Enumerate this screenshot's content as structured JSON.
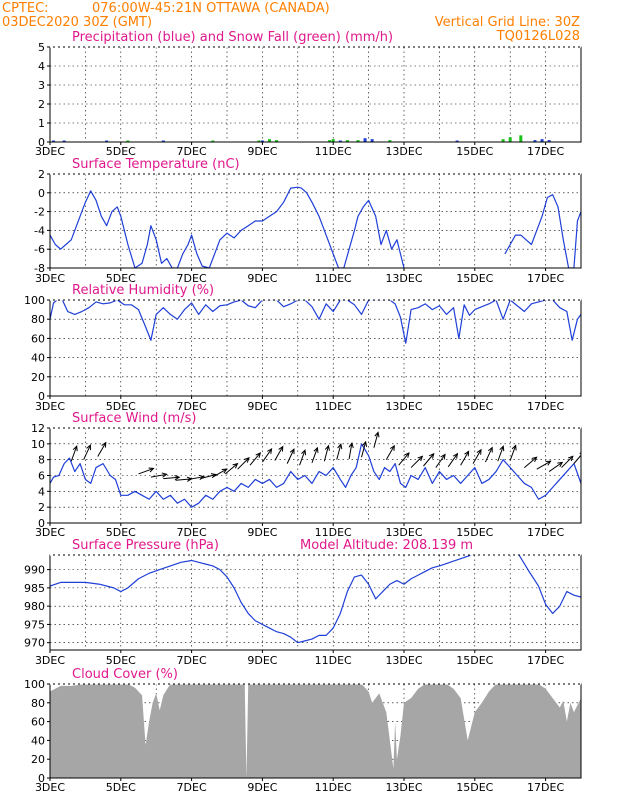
{
  "header": {
    "source": "CPTEC:",
    "location": "076:00W-45:21N  OTTAWA (CANADA)",
    "run": "03DEC2020 30Z (GMT)",
    "grid_note": "Vertical Grid Line: 30Z",
    "model": "TQ0126L028"
  },
  "chart_data": [
    {
      "id": "precip",
      "type": "bar",
      "title": "Precipitation (blue) and Snow Fall (green) (mm/h)",
      "ylim": [
        0,
        5
      ],
      "yticks": [
        0,
        1,
        2,
        3,
        4,
        5
      ],
      "x_tick_labels": [
        "3DEC",
        "5DEC",
        "7DEC",
        "9DEC",
        "11DEC",
        "13DEC",
        "15DEC",
        "17DEC"
      ],
      "series": [
        {
          "color": "#1f3fd8",
          "x": [
            3.1,
            3.4,
            4.6,
            6.2,
            9.0,
            11.2,
            11.9,
            12.1,
            14.5,
            16.7,
            16.9,
            17.1
          ],
          "values": [
            0.05,
            0.05,
            0.05,
            0.05,
            0.05,
            0.05,
            0.2,
            0.15,
            0.05,
            0.1,
            0.15,
            0.1
          ]
        },
        {
          "color": "#19c219",
          "x": [
            5.2,
            7.6,
            8.9,
            9.2,
            9.4,
            10.9,
            11.0,
            11.4,
            11.7,
            12.6,
            15.8,
            16.0,
            16.3
          ],
          "values": [
            0.05,
            0.05,
            0.05,
            0.15,
            0.1,
            0.1,
            0.15,
            0.1,
            0.1,
            0.1,
            0.15,
            0.25,
            0.35
          ]
        }
      ]
    },
    {
      "id": "temp",
      "type": "line",
      "title": "Surface Temperature (nC)",
      "ylim": [
        -8,
        2
      ],
      "yticks": [
        -8,
        -6,
        -4,
        -2,
        0,
        2
      ],
      "x_tick_labels": [
        "3DEC",
        "5DEC",
        "7DEC",
        "9DEC",
        "11DEC",
        "13DEC",
        "15DEC",
        "17DEC"
      ],
      "series": [
        {
          "color": "#1f3fd8",
          "x": [
            3.0,
            3.15,
            3.3,
            3.45,
            3.6,
            3.75,
            3.9,
            4.0,
            4.15,
            4.3,
            4.45,
            4.6,
            4.75,
            4.9,
            5.0,
            5.2,
            5.4,
            5.6,
            5.75,
            5.85,
            6.0,
            6.15,
            6.3,
            6.45,
            6.6,
            6.75,
            6.9,
            7.0,
            7.15,
            7.3,
            7.5,
            7.65,
            7.8,
            8.0,
            8.2,
            8.4,
            8.6,
            8.8,
            9.0,
            9.2,
            9.4,
            9.6,
            9.8,
            10.0,
            10.1,
            10.25,
            10.4,
            10.6,
            10.8,
            11.0,
            11.15,
            11.3,
            11.45,
            11.6,
            11.7,
            11.85,
            12.0,
            12.2,
            12.35,
            12.5,
            12.65,
            12.8,
            12.9,
            13.0
          ],
          "values": [
            -4.5,
            -5.5,
            -6.0,
            -5.5,
            -5.0,
            -3.5,
            -2.0,
            -1.0,
            0.2,
            -0.8,
            -2.5,
            -3.5,
            -2.0,
            -1.5,
            -2.5,
            -5.5,
            -8.0,
            -7.5,
            -5.5,
            -3.5,
            -5.0,
            -7.5,
            -7.0,
            -8.0,
            -8.0,
            -6.5,
            -5.5,
            -4.5,
            -6.5,
            -7.8,
            -8.0,
            -6.5,
            -5.0,
            -4.3,
            -4.8,
            -4.0,
            -3.5,
            -3.0,
            -3.0,
            -2.5,
            -2.0,
            -1.0,
            0.5,
            0.6,
            0.5,
            0.0,
            -1.0,
            -2.5,
            -4.5,
            -6.5,
            -8.0,
            -8.0,
            -6.0,
            -4.0,
            -2.5,
            -1.5,
            -0.8,
            -2.5,
            -5.5,
            -4.0,
            -6.0,
            -5.0,
            -6.5,
            -8.0
          ]
        },
        {
          "color": "#1f3fd8",
          "x": [
            15.85,
            16.0,
            16.15,
            16.3,
            16.45,
            16.6,
            16.75,
            16.9,
            17.05,
            17.2,
            17.35,
            17.5,
            17.65,
            17.8,
            17.9,
            18.0
          ],
          "values": [
            -6.5,
            -5.5,
            -4.5,
            -4.5,
            -5.0,
            -5.5,
            -4.0,
            -2.5,
            -0.5,
            -0.2,
            -1.5,
            -5.0,
            -8.0,
            -8.0,
            -3.0,
            -2.0
          ]
        }
      ]
    },
    {
      "id": "humidity",
      "type": "line",
      "title": "Relative Humidity (%)",
      "ylim": [
        0,
        100
      ],
      "yticks": [
        0,
        20,
        40,
        60,
        80,
        100
      ],
      "x_tick_labels": [
        "3DEC",
        "5DEC",
        "7DEC",
        "9DEC",
        "11DEC",
        "13DEC",
        "15DEC",
        "17DEC"
      ],
      "series": [
        {
          "color": "#1f3fd8",
          "x": [
            3.0,
            3.1,
            3.2,
            3.35,
            3.5,
            3.7,
            3.9,
            4.1,
            4.3,
            4.5,
            4.7,
            4.9,
            5.1,
            5.3,
            5.5,
            5.7,
            5.85,
            6.0,
            6.2,
            6.4,
            6.6,
            6.8,
            7.0,
            7.2,
            7.4,
            7.6,
            7.8,
            8.0,
            8.2,
            8.4,
            8.6,
            8.8,
            9.0,
            9.2,
            9.4,
            9.6,
            9.8,
            10.0,
            10.2,
            10.4,
            10.6,
            10.8,
            11.0,
            11.2,
            11.4,
            11.6,
            11.8,
            12.0,
            12.2,
            12.4,
            12.6,
            12.75,
            12.9,
            13.05,
            13.2,
            13.4,
            13.6,
            13.8,
            14.0,
            14.2,
            14.4,
            14.55,
            14.7,
            14.85,
            15.0,
            15.2,
            15.4,
            15.6,
            15.8,
            16.0,
            16.2,
            16.4,
            16.6,
            16.8,
            17.0,
            17.2,
            17.4,
            17.6,
            17.75,
            17.9,
            18.0
          ],
          "values": [
            80,
            97,
            100,
            100,
            88,
            85,
            88,
            92,
            98,
            96,
            97,
            100,
            95,
            95,
            90,
            72,
            58,
            85,
            92,
            85,
            80,
            90,
            97,
            85,
            95,
            88,
            94,
            95,
            98,
            100,
            94,
            92,
            100,
            100,
            100,
            93,
            96,
            100,
            100,
            93,
            80,
            96,
            88,
            100,
            100,
            95,
            85,
            100,
            100,
            100,
            100,
            96,
            82,
            55,
            90,
            92,
            96,
            90,
            94,
            85,
            92,
            60,
            95,
            84,
            90,
            93,
            96,
            100,
            80,
            100,
            94,
            88,
            96,
            98,
            100,
            100,
            92,
            88,
            58,
            80,
            85
          ]
        }
      ]
    },
    {
      "id": "wind",
      "type": "line",
      "title": "Surface Wind (m/s)",
      "ylim": [
        0,
        12
      ],
      "yticks": [
        0,
        2,
        4,
        6,
        8,
        10,
        12
      ],
      "x_tick_labels": [
        "3DEC",
        "5DEC",
        "7DEC",
        "9DEC",
        "11DEC",
        "13DEC",
        "15DEC",
        "17DEC"
      ],
      "series": [
        {
          "color": "#1f3fd8",
          "x": [
            3.0,
            3.1,
            3.25,
            3.4,
            3.55,
            3.7,
            3.85,
            4.0,
            4.15,
            4.3,
            4.5,
            4.7,
            4.85,
            5.0,
            5.2,
            5.4,
            5.6,
            5.8,
            6.0,
            6.2,
            6.4,
            6.6,
            6.8,
            7.0,
            7.2,
            7.4,
            7.6,
            7.8,
            8.0,
            8.2,
            8.4,
            8.6,
            8.8,
            9.0,
            9.2,
            9.4,
            9.6,
            9.8,
            10.0,
            10.2,
            10.4,
            10.6,
            10.8,
            11.0,
            11.2,
            11.35,
            11.5,
            11.65,
            11.8,
            12.0,
            12.15,
            12.3,
            12.45,
            12.6,
            12.75,
            12.9,
            13.05,
            13.2,
            13.4,
            13.6,
            13.8,
            14.0,
            14.2,
            14.4,
            14.6,
            14.8,
            15.0,
            15.2,
            15.4,
            15.6,
            15.8,
            16.0,
            16.2,
            16.4,
            16.6,
            16.8,
            17.0,
            17.2,
            17.4,
            17.6,
            17.8,
            18.0
          ],
          "values": [
            5.0,
            5.8,
            6.0,
            7.5,
            8.2,
            6.5,
            7.5,
            5.5,
            5.0,
            7.0,
            7.5,
            6.0,
            5.5,
            3.5,
            3.5,
            4.0,
            3.5,
            3.0,
            4.0,
            3.0,
            3.5,
            2.5,
            3.0,
            2.0,
            2.5,
            3.5,
            3.0,
            4.0,
            4.5,
            4.0,
            5.0,
            4.5,
            5.5,
            5.0,
            5.5,
            4.5,
            5.0,
            6.5,
            5.5,
            6.0,
            5.0,
            6.5,
            6.0,
            7.0,
            5.5,
            4.5,
            6.0,
            7.0,
            10.0,
            8.5,
            6.5,
            5.5,
            7.0,
            6.5,
            7.5,
            5.0,
            4.5,
            6.0,
            5.5,
            7.0,
            5.0,
            6.5,
            5.5,
            6.0,
            5.0,
            6.0,
            7.0,
            5.0,
            5.5,
            6.5,
            8.0,
            7.0,
            6.0,
            5.0,
            4.5,
            3.0,
            3.5,
            4.5,
            5.5,
            6.5,
            7.5,
            5.0
          ]
        }
      ],
      "arrows": {
        "x": [
          3.6,
          3.95,
          4.35,
          5.5,
          5.85,
          6.2,
          6.55,
          6.9,
          7.25,
          7.6,
          7.95,
          8.3,
          8.65,
          9.0,
          9.35,
          9.7,
          10.05,
          10.4,
          10.75,
          11.1,
          11.45,
          11.8,
          12.15,
          12.5,
          12.85,
          13.2,
          13.55,
          13.9,
          14.25,
          14.6,
          14.95,
          15.3,
          15.65,
          16.0,
          16.4,
          16.75,
          17.1,
          17.45,
          17.8
        ],
        "values": [
          7.8,
          8.0,
          8.4,
          6.2,
          5.8,
          5.6,
          5.4,
          5.5,
          5.6,
          5.8,
          6.2,
          6.8,
          7.3,
          7.7,
          7.9,
          7.5,
          7.3,
          7.6,
          7.8,
          8.0,
          8.1,
          8.3,
          9.5,
          8.0,
          7.3,
          7.0,
          7.2,
          7.0,
          7.1,
          7.3,
          7.5,
          7.7,
          7.8,
          7.9,
          7.0,
          6.8,
          6.5,
          7.0,
          7.5
        ],
        "direction_deg": [
          20,
          25,
          30,
          70,
          80,
          85,
          85,
          80,
          75,
          60,
          50,
          45,
          40,
          35,
          30,
          25,
          20,
          20,
          15,
          15,
          10,
          15,
          15,
          30,
          40,
          45,
          40,
          35,
          35,
          30,
          30,
          25,
          20,
          20,
          50,
          60,
          55,
          45,
          40
        ]
      }
    },
    {
      "id": "pressure",
      "type": "line",
      "title": "Surface Pressure (hPa)",
      "annotation": "Model Altitude: 208.139 m",
      "ylim": [
        968,
        994
      ],
      "yticks": [
        970,
        975,
        980,
        985,
        990
      ],
      "x_tick_labels": [
        "3DEC",
        "5DEC",
        "7DEC",
        "9DEC",
        "11DEC",
        "13DEC",
        "15DEC",
        "17DEC"
      ],
      "series": [
        {
          "color": "#1f3fd8",
          "x": [
            3.0,
            3.3,
            3.6,
            4.0,
            4.4,
            4.8,
            5.0,
            5.2,
            5.5,
            5.8,
            6.1,
            6.4,
            6.7,
            7.0,
            7.2,
            7.4,
            7.6,
            7.8,
            8.0,
            8.2,
            8.4,
            8.6,
            8.8,
            9.0,
            9.2,
            9.4,
            9.6,
            9.8,
            10.0,
            10.2,
            10.4,
            10.6,
            10.8,
            11.0,
            11.2,
            11.4,
            11.6,
            11.8,
            12.0,
            12.2,
            12.4,
            12.6,
            12.8,
            13.0,
            13.2,
            13.4,
            13.6,
            13.8,
            14.0,
            14.3,
            14.6,
            14.9
          ],
          "values": [
            985.5,
            986.5,
            986.5,
            986.5,
            986.0,
            985.0,
            984.0,
            985.0,
            987.5,
            989.0,
            990.0,
            991.0,
            992.0,
            992.5,
            992.0,
            991.5,
            991.0,
            990.0,
            988.0,
            985.0,
            981.0,
            978.0,
            976.0,
            975.0,
            974.0,
            973.0,
            972.5,
            971.5,
            970.0,
            970.5,
            971.0,
            972.0,
            972.0,
            974.0,
            978.0,
            984.0,
            988.0,
            988.5,
            986.0,
            982.0,
            984.0,
            986.0,
            987.0,
            986.0,
            987.5,
            988.5,
            989.5,
            990.5,
            991.0,
            992.0,
            993.0,
            994.0
          ]
        },
        {
          "color": "#1f3fd8",
          "x": [
            16.25,
            16.5,
            16.8,
            17.0,
            17.2,
            17.4,
            17.6,
            17.8,
            18.0
          ],
          "values": [
            994.0,
            990.0,
            985.5,
            980.5,
            978.0,
            980.0,
            984.0,
            983.0,
            982.5
          ]
        }
      ]
    },
    {
      "id": "cloud",
      "type": "area",
      "title": "Cloud Cover (%)",
      "ylim": [
        0,
        100
      ],
      "yticks": [
        0,
        20,
        40,
        60,
        80,
        100
      ],
      "x_tick_labels": [
        "3DEC",
        "5DEC",
        "7DEC",
        "9DEC",
        "11DEC",
        "13DEC",
        "15DEC",
        "17DEC"
      ],
      "series": [
        {
          "color": "#a6a6a6",
          "x": [
            3.0,
            3.3,
            3.6,
            4.0,
            4.4,
            4.6,
            4.8,
            5.0,
            5.2,
            5.4,
            5.6,
            5.7,
            5.8,
            5.9,
            6.0,
            6.1,
            6.2,
            6.4,
            6.6,
            6.8,
            7.0,
            7.4,
            7.8,
            8.2,
            8.5,
            8.55,
            8.6,
            9.0,
            9.5,
            10.0,
            10.5,
            11.0,
            11.5,
            11.8,
            12.0,
            12.1,
            12.3,
            12.5,
            12.6,
            12.7,
            12.75,
            12.8,
            12.9,
            13.0,
            13.2,
            13.4,
            13.6,
            13.8,
            14.0,
            14.2,
            14.4,
            14.6,
            14.8,
            15.0,
            15.2,
            15.4,
            15.6,
            15.8,
            16.0,
            16.2,
            16.4,
            16.6,
            16.8,
            17.0,
            17.2,
            17.4,
            17.5,
            17.6,
            17.7,
            17.8,
            18.0
          ],
          "values": [
            92,
            98,
            98,
            100,
            100,
            100,
            100,
            100,
            100,
            96,
            88,
            35,
            60,
            80,
            90,
            72,
            88,
            100,
            100,
            100,
            100,
            100,
            100,
            100,
            100,
            0,
            100,
            100,
            100,
            100,
            100,
            100,
            100,
            100,
            92,
            80,
            90,
            70,
            40,
            10,
            60,
            20,
            45,
            80,
            85,
            95,
            100,
            100,
            100,
            100,
            95,
            85,
            40,
            70,
            80,
            92,
            100,
            100,
            100,
            100,
            100,
            100,
            100,
            95,
            85,
            75,
            82,
            60,
            80,
            70,
            85
          ]
        }
      ]
    }
  ]
}
